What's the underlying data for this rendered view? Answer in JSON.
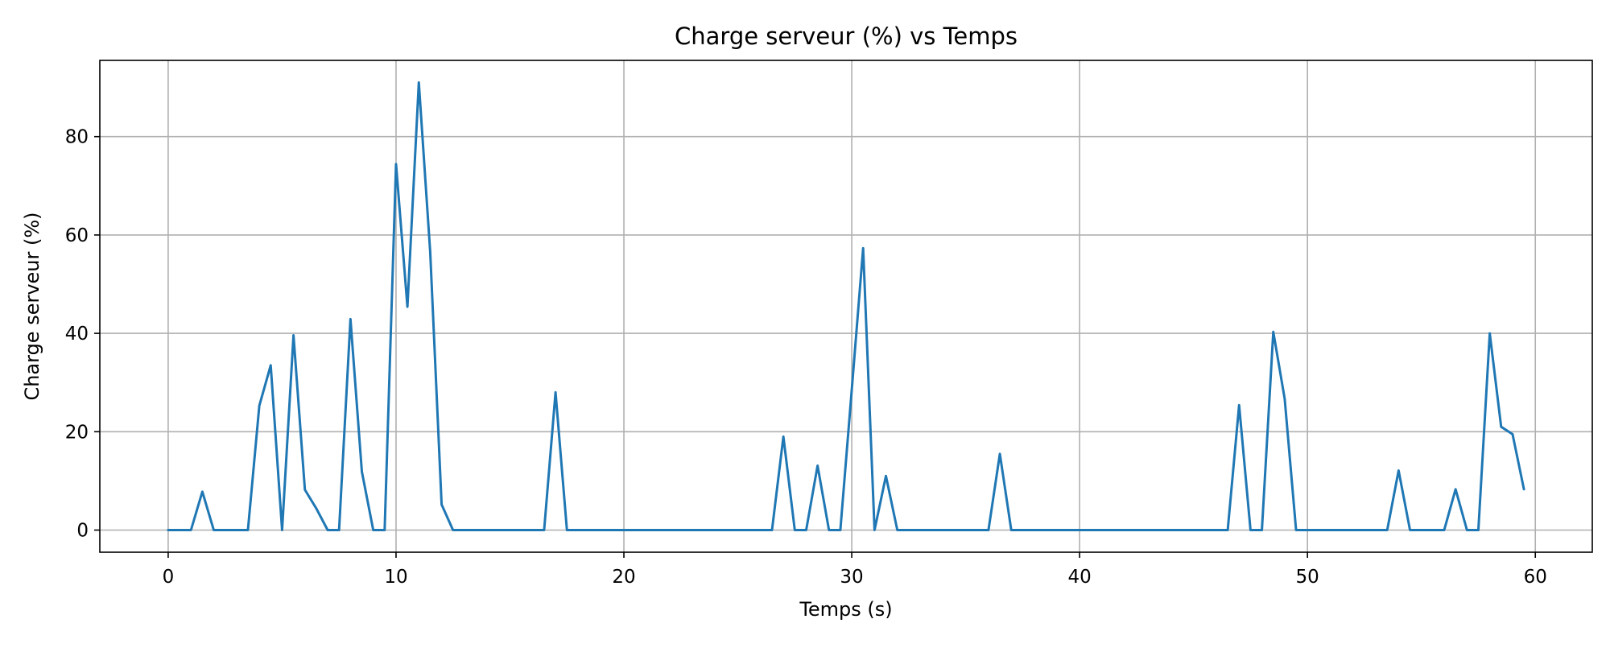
{
  "chart_data": {
    "type": "line",
    "title": "Charge serveur (%) vs Temps",
    "xlabel": "Temps (s)",
    "ylabel": "Charge serveur (%)",
    "xlim": [
      -3,
      62.5
    ],
    "ylim": [
      -4.5,
      95.5
    ],
    "xticks": [
      0,
      10,
      20,
      30,
      40,
      50,
      60
    ],
    "yticks": [
      0,
      20,
      40,
      60,
      80
    ],
    "grid": true,
    "legend": "none",
    "series": [
      {
        "color": "#1f77b4",
        "x": [
          0,
          0.5,
          1,
          1.5,
          2,
          2.5,
          3,
          3.5,
          4,
          4.5,
          5,
          5.5,
          6,
          6.5,
          7,
          7.5,
          8,
          8.5,
          9,
          9.5,
          10,
          10.5,
          11,
          11.5,
          12,
          12.5,
          13,
          13.5,
          14,
          14.5,
          15,
          15.5,
          16,
          16.5,
          17,
          17.5,
          18,
          18.5,
          19,
          19.5,
          20,
          20.5,
          21,
          21.5,
          22,
          22.5,
          23,
          23.5,
          24,
          24.5,
          25,
          25.5,
          26,
          26.5,
          27,
          27.5,
          28,
          28.5,
          29,
          29.5,
          30,
          30.5,
          31,
          31.5,
          32,
          32.5,
          33,
          33.5,
          34,
          34.5,
          35,
          35.5,
          36,
          36.5,
          37,
          37.5,
          38,
          38.5,
          39,
          39.5,
          40,
          40.5,
          41,
          41.5,
          42,
          42.5,
          43,
          43.5,
          44,
          44.5,
          45,
          45.5,
          46,
          46.5,
          47,
          47.5,
          48,
          48.5,
          49,
          49.5,
          50,
          50.5,
          51,
          51.5,
          52,
          52.5,
          53,
          53.5,
          54,
          54.5,
          55,
          55.5,
          56,
          56.5,
          57,
          57.5,
          58,
          58.5,
          59,
          59.5
        ],
        "y": [
          0,
          0,
          0,
          7.8,
          0,
          0,
          0,
          0,
          25.3,
          33.5,
          0,
          39.6,
          8.2,
          4.4,
          0,
          0,
          42.9,
          11.9,
          0,
          0,
          74.4,
          45.4,
          91.0,
          56.5,
          5.2,
          0,
          0,
          0,
          0,
          0,
          0,
          0,
          0,
          0,
          28.0,
          0,
          0,
          0,
          0,
          0,
          0,
          0,
          0,
          0,
          0,
          0,
          0,
          0,
          0,
          0,
          0,
          0,
          0,
          0,
          19.0,
          0,
          0,
          13.1,
          0,
          0,
          28.5,
          57.3,
          0,
          11.0,
          0,
          0,
          0,
          0,
          0,
          0,
          0,
          0,
          0,
          15.5,
          0,
          0,
          0,
          0,
          0,
          0,
          0,
          0,
          0,
          0,
          0,
          0,
          0,
          0,
          0,
          0,
          0,
          0,
          0,
          0,
          25.4,
          0,
          0,
          40.3,
          26.7,
          0,
          0,
          0,
          0,
          0,
          0,
          0,
          0,
          0,
          12.1,
          0,
          0,
          0,
          0,
          8.3,
          0,
          0,
          40.0,
          21.0,
          19.5,
          8.3
        ]
      }
    ]
  }
}
